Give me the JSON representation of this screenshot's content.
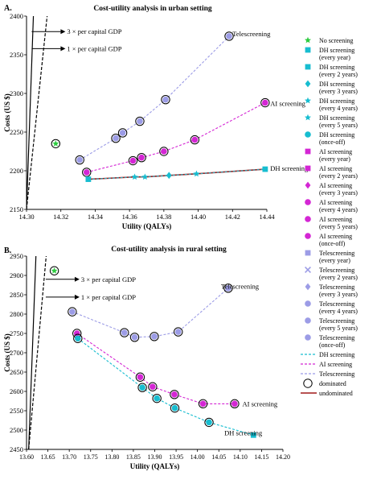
{
  "colors": {
    "dh": "#17bdd0",
    "ai": "#d426d4",
    "tele": "#9c9ce6",
    "noscreen": "#2ecc40",
    "undominated": "#a01818",
    "dominated_edge": "#000000",
    "threshold": "#000000"
  },
  "chart_data": [
    {
      "id": "A",
      "type": "scatter",
      "panel_letter": "A.",
      "title": "Cost-utility analysis in urban setting",
      "xlabel": "Utility (QALYs)",
      "ylabel": "Costs (US $)",
      "xlim": [
        14.3,
        14.44
      ],
      "ylim": [
        2150,
        2400
      ],
      "xticks": [
        "14.30",
        "14.32",
        "14.34",
        "14.36",
        "14.38",
        "14.40",
        "14.42",
        "14.44"
      ],
      "yticks": [
        "2150",
        "2200",
        "2250",
        "2300",
        "2350",
        "2400"
      ],
      "thresholds": [
        {
          "label": "3 × per capital GDP",
          "style": "dashed",
          "x": [
            14.3,
            14.312
          ],
          "y": [
            2150,
            2400
          ],
          "label_x": 14.303,
          "label_y": 2380
        },
        {
          "label": "1 × per capital GDP",
          "style": "solid",
          "x": [
            14.3,
            14.304
          ],
          "y": [
            2150,
            2400
          ],
          "label_x": 14.303,
          "label_y": 2358
        }
      ],
      "no_screening": {
        "x": 14.317,
        "y": 2235,
        "dominated": true
      },
      "series": [
        {
          "name": "Telescreening",
          "label": "Telescreening",
          "color_key": "tele",
          "line": "dashed",
          "label_x": 14.42,
          "label_y": 2377,
          "points": [
            {
              "x": 14.331,
              "y": 2214,
              "marker": "circle",
              "dominated": true
            },
            {
              "x": 14.352,
              "y": 2242,
              "marker": "circle",
              "dominated": true
            },
            {
              "x": 14.356,
              "y": 2249,
              "marker": "circle",
              "dominated": true
            },
            {
              "x": 14.366,
              "y": 2264,
              "marker": "circle",
              "dominated": true
            },
            {
              "x": 14.381,
              "y": 2292,
              "marker": "circle",
              "dominated": true
            },
            {
              "x": 14.418,
              "y": 2374,
              "marker": "circle",
              "dominated": true
            }
          ]
        },
        {
          "name": "AI screening",
          "label": "AI screening",
          "color_key": "ai",
          "line": "dashed",
          "label_x": 14.442,
          "label_y": 2287,
          "points": [
            {
              "x": 14.335,
              "y": 2198,
              "marker": "circle",
              "dominated": true
            },
            {
              "x": 14.362,
              "y": 2213,
              "marker": "circle",
              "dominated": true
            },
            {
              "x": 14.367,
              "y": 2217,
              "marker": "circle",
              "dominated": true
            },
            {
              "x": 14.38,
              "y": 2225,
              "marker": "circle",
              "dominated": true
            },
            {
              "x": 14.398,
              "y": 2240,
              "marker": "circle",
              "dominated": true
            },
            {
              "x": 14.439,
              "y": 2288,
              "marker": "circle",
              "dominated": true
            }
          ]
        },
        {
          "name": "DH screening",
          "label": "DH screening",
          "color_key": "dh",
          "line": "solid",
          "label_x": 14.442,
          "label_y": 2203,
          "points": [
            {
              "x": 14.336,
              "y": 2189,
              "marker": "square",
              "dominated": false
            },
            {
              "x": 14.363,
              "y": 2192,
              "marker": "star",
              "dominated": false
            },
            {
              "x": 14.369,
              "y": 2192,
              "marker": "star",
              "dominated": false
            },
            {
              "x": 14.383,
              "y": 2194,
              "marker": "diamond",
              "dominated": false
            },
            {
              "x": 14.399,
              "y": 2196,
              "marker": "star",
              "dominated": false
            },
            {
              "x": 14.439,
              "y": 2202,
              "marker": "square",
              "dominated": false
            }
          ]
        }
      ]
    },
    {
      "id": "B",
      "type": "scatter",
      "panel_letter": "B.",
      "title": "Cost-utility analysis in rural setting",
      "xlabel": "Utility (QALYs)",
      "ylabel": "Costs (US $)",
      "xlim": [
        13.6,
        14.2
      ],
      "ylim": [
        2450,
        2950
      ],
      "xticks": [
        "13.60",
        "13.65",
        "13.70",
        "13.75",
        "13.80",
        "13.85",
        "13.90",
        "13.95",
        "14.00",
        "14.05",
        "14.10",
        "14.15",
        "14.20"
      ],
      "yticks": [
        "2450",
        "2500",
        "2550",
        "2600",
        "2650",
        "2700",
        "2750",
        "2800",
        "2850",
        "2900",
        "2950"
      ],
      "thresholds": [
        {
          "label": "3 × per capital GDP",
          "style": "dashed",
          "x": [
            13.605,
            13.646
          ],
          "y": [
            2450,
            2950
          ],
          "label_x": 13.645,
          "label_y": 2890
        },
        {
          "label": "1 × per capital GDP",
          "style": "solid",
          "x": [
            13.605,
            13.622
          ],
          "y": [
            2450,
            2950
          ],
          "label_x": 13.645,
          "label_y": 2844
        }
      ],
      "no_screening": {
        "x": 13.665,
        "y": 2912,
        "dominated": true
      },
      "series": [
        {
          "name": "Telescreening",
          "label": "Telescreening",
          "color_key": "tele",
          "line": "dashed",
          "label_x": 14.055,
          "label_y": 2872,
          "points": [
            {
              "x": 13.707,
              "y": 2806,
              "marker": "circle",
              "dominated": true
            },
            {
              "x": 13.829,
              "y": 2752,
              "marker": "circle",
              "dominated": true
            },
            {
              "x": 13.853,
              "y": 2740,
              "marker": "circle",
              "dominated": true
            },
            {
              "x": 13.899,
              "y": 2742,
              "marker": "circle",
              "dominated": true
            },
            {
              "x": 13.955,
              "y": 2754,
              "marker": "circle",
              "dominated": true
            },
            {
              "x": 14.072,
              "y": 2867,
              "marker": "circle",
              "dominated": true
            }
          ]
        },
        {
          "name": "AI screening",
          "label": "AI screening",
          "color_key": "ai",
          "line": "dashed",
          "label_x": 14.105,
          "label_y": 2568,
          "points": [
            {
              "x": 13.718,
              "y": 2750,
              "marker": "circle",
              "dominated": true
            },
            {
              "x": 13.866,
              "y": 2637,
              "marker": "circle",
              "dominated": true
            },
            {
              "x": 13.895,
              "y": 2612,
              "marker": "circle",
              "dominated": true
            },
            {
              "x": 13.946,
              "y": 2592,
              "marker": "circle",
              "dominated": true
            },
            {
              "x": 14.013,
              "y": 2568,
              "marker": "circle",
              "dominated": true
            },
            {
              "x": 14.087,
              "y": 2568,
              "marker": "circle",
              "dominated": true
            }
          ]
        },
        {
          "name": "DH screening",
          "label": "DH screening",
          "color_key": "dh",
          "line": "dashed",
          "label_x": 14.063,
          "label_y": 2493,
          "points": [
            {
              "x": 13.72,
              "y": 2737,
              "marker": "circle",
              "dominated": true
            },
            {
              "x": 13.871,
              "y": 2610,
              "marker": "circle",
              "dominated": true
            },
            {
              "x": 13.905,
              "y": 2582,
              "marker": "circle",
              "dominated": true
            },
            {
              "x": 13.947,
              "y": 2557,
              "marker": "circle",
              "dominated": true
            },
            {
              "x": 14.027,
              "y": 2520,
              "marker": "circle",
              "dominated": true
            },
            {
              "x": 14.131,
              "y": 2487,
              "marker": "square",
              "dominated": false
            }
          ]
        }
      ]
    }
  ],
  "legend": {
    "placement": "right",
    "items": [
      {
        "label": [
          "No screening"
        ],
        "kind": "star",
        "color_key": "noscreen"
      },
      {
        "label": [
          "DH screening",
          "(every year)"
        ],
        "kind": "square",
        "color_key": "dh"
      },
      {
        "label": [
          "DH screening",
          "(every 2 years)"
        ],
        "kind": "square",
        "color_key": "dh"
      },
      {
        "label": [
          "DH screening",
          "(every 3 years)"
        ],
        "kind": "diamond",
        "color_key": "dh"
      },
      {
        "label": [
          "DH screening",
          "(every 4 years)"
        ],
        "kind": "star",
        "color_key": "dh"
      },
      {
        "label": [
          "DH screening",
          "(every 5 years)"
        ],
        "kind": "star",
        "color_key": "dh"
      },
      {
        "label": [
          "DH screening",
          "(once-off)"
        ],
        "kind": "circle",
        "color_key": "dh"
      },
      {
        "label": [
          "AI screening",
          "(every year)"
        ],
        "kind": "square",
        "color_key": "ai"
      },
      {
        "label": [
          "AI screening",
          "(every 2 years)"
        ],
        "kind": "square",
        "color_key": "ai"
      },
      {
        "label": [
          "AI screening",
          "(every 3 years)"
        ],
        "kind": "diamond",
        "color_key": "ai"
      },
      {
        "label": [
          "AI screening",
          "(every 4 years)"
        ],
        "kind": "circle",
        "color_key": "ai"
      },
      {
        "label": [
          "AI screening",
          "(every 5 years)"
        ],
        "kind": "circle",
        "color_key": "ai"
      },
      {
        "label": [
          "AI screening",
          "(once-off)"
        ],
        "kind": "circle",
        "color_key": "ai"
      },
      {
        "label": [
          "Telescreening",
          "(every year)"
        ],
        "kind": "square",
        "color_key": "tele"
      },
      {
        "label": [
          "Telescreening",
          "(every 2 years)"
        ],
        "kind": "cross",
        "color_key": "tele"
      },
      {
        "label": [
          "Telescreening",
          "(every 3 years)"
        ],
        "kind": "diamond",
        "color_key": "tele"
      },
      {
        "label": [
          "Telescreening",
          "(every 4 years)"
        ],
        "kind": "circle",
        "color_key": "tele"
      },
      {
        "label": [
          "Telescreening",
          "(every 5 years)"
        ],
        "kind": "circle",
        "color_key": "tele"
      },
      {
        "label": [
          "Telescreening",
          "(once-off)"
        ],
        "kind": "circle",
        "color_key": "tele"
      },
      {
        "label": [
          "DH screening"
        ],
        "kind": "line-dashed",
        "color_key": "dh"
      },
      {
        "label": [
          "AI screening"
        ],
        "kind": "line-dashed",
        "color_key": "ai"
      },
      {
        "label": [
          "Telescreening"
        ],
        "kind": "line-dashed",
        "color_key": "tele"
      },
      {
        "label": [
          "dominated"
        ],
        "kind": "open-circle",
        "color_key": "dominated_edge"
      },
      {
        "label": [
          "undominated"
        ],
        "kind": "line-solid",
        "color_key": "undominated"
      }
    ]
  }
}
